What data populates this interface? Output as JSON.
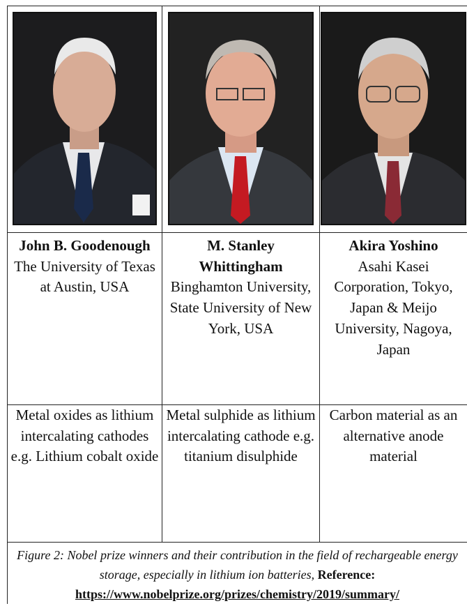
{
  "table": {
    "rows": [
      [
        {
          "name": "John B. Goodenough",
          "affiliation": "The University of Texas at Austin, USA"
        },
        {
          "name": "M. Stanley Whittingham",
          "affiliation": "Binghamton University, State University of New York, USA"
        },
        {
          "name": "Akira Yoshino",
          "affiliation": "Asahi Kasei Corporation, Tokyo, Japan & Meijo University, Nagoya, Japan"
        }
      ],
      [
        "Metal oxides as lithium intercalating cathodes e.g. Lithium cobalt oxide",
        "Metal sulphide as lithium intercalating cathode e.g. titanium disulphide",
        "Carbon material as an alternative anode material"
      ]
    ]
  },
  "caption": {
    "text": "Figure 2: Nobel prize winners and their contribution in the field of rechargeable energy storage, especially in lithium ion batteries,",
    "reference_label": "Reference:",
    "url": "https://www.nobelprize.org/prizes/chemistry/2019/summary/"
  }
}
